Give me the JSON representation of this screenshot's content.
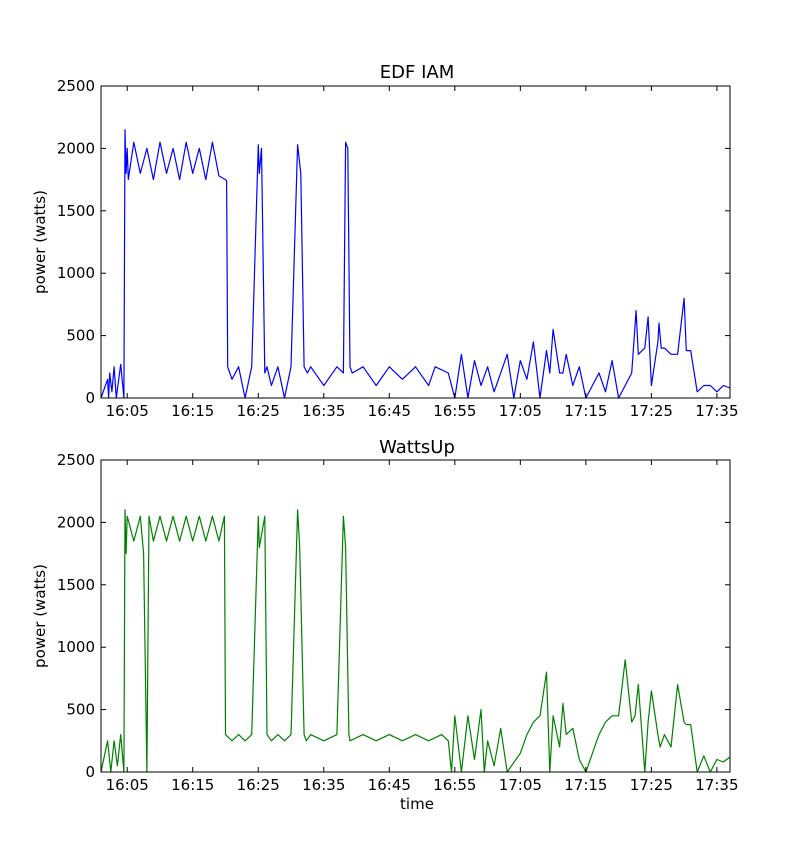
{
  "chart_data": [
    {
      "type": "line",
      "title": "EDF IAM",
      "xlabel": "",
      "ylabel": "power (watts)",
      "ylim": [
        0,
        2500
      ],
      "xlim": [
        "16:01",
        "17:37"
      ],
      "grid": false,
      "yticks": [
        "0",
        "500",
        "1000",
        "1500",
        "2000",
        "2500"
      ],
      "xticks": [
        "16:05",
        "16:15",
        "16:25",
        "16:35",
        "16:45",
        "16:55",
        "17:05",
        "17:15",
        "17:25",
        "17:35"
      ],
      "color": "#0000ff",
      "series": [
        {
          "x": [
            "16:01:00",
            "16:02:00",
            "16:02:10",
            "16:02:20",
            "16:02:40",
            "16:03:00",
            "16:03:20",
            "16:04:00",
            "16:04:30",
            "16:04:40",
            "16:04:50",
            "16:05:00",
            "16:05:10",
            "16:06:00",
            "16:07:00",
            "16:08:00",
            "16:09:00",
            "16:10:00",
            "16:11:00",
            "16:12:00",
            "16:13:00",
            "16:14:00",
            "16:15:00",
            "16:16:00",
            "16:17:00",
            "16:18:00",
            "16:19:00",
            "16:20:00",
            "16:20:10",
            "16:20:20",
            "16:21:00",
            "16:22:00",
            "16:23:00",
            "16:24:00",
            "16:25:00",
            "16:25:10",
            "16:25:30",
            "16:26:00",
            "16:26:20",
            "16:27:00",
            "16:28:00",
            "16:29:00",
            "16:30:00",
            "16:31:00",
            "16:31:30",
            "16:32:00",
            "16:32:30",
            "16:33:00",
            "16:35:00",
            "16:37:00",
            "16:38:00",
            "16:38:20",
            "16:38:40",
            "16:39:00",
            "16:39:20",
            "16:41:00",
            "16:43:00",
            "16:45:00",
            "16:47:00",
            "16:49:00",
            "16:51:00",
            "16:52:00",
            "16:54:00",
            "16:55:00",
            "16:56:00",
            "16:57:00",
            "16:58:00",
            "16:59:00",
            "17:00:00",
            "17:01:00",
            "17:03:00",
            "17:04:00",
            "17:05:00",
            "17:06:00",
            "17:07:00",
            "17:08:00",
            "17:09:00",
            "17:09:30",
            "17:10:00",
            "17:11:00",
            "17:11:30",
            "17:12:00",
            "17:13:00",
            "17:14:00",
            "17:15:00",
            "17:16:00",
            "17:17:00",
            "17:18:00",
            "17:19:00",
            "17:20:00",
            "17:21:00",
            "17:22:00",
            "17:22:40",
            "17:23:00",
            "17:24:00",
            "17:24:30",
            "17:25:00",
            "17:26:00",
            "17:26:10",
            "17:26:30",
            "17:27:00",
            "17:28:00",
            "17:29:00",
            "17:30:00",
            "17:30:20",
            "17:31:00",
            "17:32:00",
            "17:33:00",
            "17:34:00",
            "17:35:00",
            "17:36:00",
            "17:37:00"
          ],
          "y": [
            0,
            150,
            0,
            200,
            50,
            250,
            0,
            270,
            0,
            2150,
            1800,
            2000,
            1750,
            2050,
            1800,
            2000,
            1750,
            2050,
            1800,
            2000,
            1750,
            2050,
            1800,
            2000,
            1750,
            2050,
            1780,
            1750,
            1740,
            250,
            150,
            250,
            0,
            250,
            2030,
            1800,
            2000,
            200,
            250,
            100,
            250,
            0,
            250,
            2030,
            1800,
            250,
            200,
            250,
            100,
            250,
            200,
            2050,
            2000,
            250,
            200,
            250,
            100,
            250,
            150,
            250,
            100,
            250,
            200,
            0,
            350,
            0,
            300,
            100,
            250,
            50,
            350,
            0,
            300,
            150,
            450,
            0,
            380,
            200,
            550,
            200,
            200,
            350,
            100,
            250,
            0,
            100,
            200,
            50,
            300,
            0,
            100,
            200,
            700,
            350,
            400,
            650,
            100,
            450,
            600,
            400,
            400,
            350,
            350,
            800,
            380,
            380,
            50,
            100,
            100,
            50,
            100,
            80
          ]
        }
      ]
    },
    {
      "type": "line",
      "title": "WattsUp",
      "xlabel": "time",
      "ylabel": "power (watts)",
      "ylim": [
        0,
        2500
      ],
      "xlim": [
        "16:01",
        "17:37"
      ],
      "grid": false,
      "yticks": [
        "0",
        "500",
        "1000",
        "1500",
        "2000",
        "2500"
      ],
      "xticks": [
        "16:05",
        "16:15",
        "16:25",
        "16:35",
        "16:45",
        "16:55",
        "17:05",
        "17:15",
        "17:25",
        "17:35"
      ],
      "color": "#008000",
      "series": [
        {
          "x": [
            "16:01:00",
            "16:02:00",
            "16:02:30",
            "16:03:00",
            "16:03:30",
            "16:04:00",
            "16:04:30",
            "16:04:40",
            "16:04:50",
            "16:05:00",
            "16:06:00",
            "16:07:00",
            "16:07:30",
            "16:08:00",
            "16:08:20",
            "16:09:00",
            "16:10:00",
            "16:11:00",
            "16:12:00",
            "16:13:00",
            "16:14:00",
            "16:15:00",
            "16:16:00",
            "16:17:00",
            "16:18:00",
            "16:19:00",
            "16:19:50",
            "16:20:00",
            "16:21:00",
            "16:22:00",
            "16:23:00",
            "16:24:00",
            "16:25:00",
            "16:25:10",
            "16:26:00",
            "16:26:20",
            "16:27:00",
            "16:28:00",
            "16:29:00",
            "16:30:00",
            "16:31:00",
            "16:31:20",
            "16:32:00",
            "16:32:20",
            "16:33:00",
            "16:35:00",
            "16:37:00",
            "16:38:00",
            "16:38:20",
            "16:38:50",
            "16:39:00",
            "16:41:00",
            "16:43:00",
            "16:45:00",
            "16:47:00",
            "16:49:00",
            "16:51:00",
            "16:53:00",
            "16:54:00",
            "16:54:30",
            "16:55:00",
            "16:56:00",
            "16:57:00",
            "16:58:00",
            "16:59:00",
            "16:59:30",
            "17:00:00",
            "17:01:00",
            "17:02:00",
            "17:03:00",
            "17:05:00",
            "17:06:00",
            "17:07:00",
            "17:08:00",
            "17:09:00",
            "17:09:30",
            "17:10:00",
            "17:11:00",
            "17:11:30",
            "17:12:00",
            "17:13:00",
            "17:14:00",
            "17:15:00",
            "17:16:00",
            "17:17:00",
            "17:18:00",
            "17:19:00",
            "17:20:00",
            "17:21:00",
            "17:22:00",
            "17:22:30",
            "17:23:00",
            "17:24:00",
            "17:24:30",
            "17:25:00",
            "17:26:00",
            "17:26:20",
            "17:27:00",
            "17:28:00",
            "17:29:00",
            "17:30:00",
            "17:30:20",
            "17:31:00",
            "17:32:00",
            "17:33:00",
            "17:34:00",
            "17:35:00",
            "17:36:00",
            "17:37:00"
          ],
          "y": [
            0,
            250,
            0,
            250,
            50,
            300,
            0,
            2100,
            1750,
            2050,
            1850,
            2050,
            1750,
            0,
            2050,
            1850,
            2050,
            1850,
            2050,
            1850,
            2050,
            1850,
            2050,
            1850,
            2050,
            1850,
            2050,
            300,
            250,
            300,
            250,
            300,
            2050,
            1800,
            2050,
            300,
            250,
            300,
            250,
            300,
            2100,
            1800,
            300,
            250,
            300,
            250,
            300,
            2050,
            1800,
            300,
            250,
            300,
            250,
            300,
            250,
            300,
            250,
            300,
            250,
            0,
            450,
            0,
            450,
            100,
            500,
            0,
            250,
            50,
            350,
            0,
            150,
            300,
            400,
            450,
            800,
            0,
            450,
            200,
            550,
            300,
            350,
            100,
            0,
            150,
            300,
            400,
            450,
            450,
            900,
            400,
            450,
            700,
            0,
            400,
            650,
            300,
            200,
            300,
            200,
            700,
            400,
            380,
            380,
            0,
            130,
            0,
            100,
            80,
            120
          ]
        }
      ]
    }
  ]
}
